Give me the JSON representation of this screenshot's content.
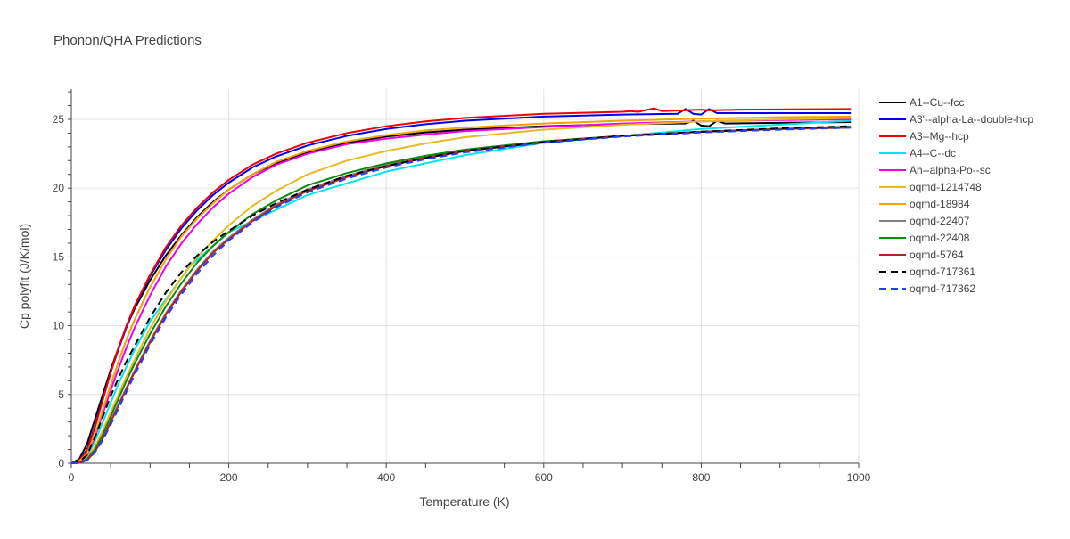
{
  "chart_data": {
    "type": "line",
    "title": "Phonon/QHA Predictions",
    "xlabel": "Temperature (K)",
    "ylabel": "Cp polyfit (J/K/mol)",
    "xlim": [
      0,
      1000
    ],
    "ylim": [
      0,
      27.2
    ],
    "xticks": [
      0,
      200,
      400,
      600,
      800,
      1000
    ],
    "yticks": [
      0,
      5,
      10,
      15,
      20,
      25
    ],
    "grid": true,
    "legend_position": "right",
    "series": [
      {
        "name": "A1--Cu--fcc",
        "color": "#000000",
        "dash": "solid",
        "x": [
          0,
          10,
          20,
          30,
          40,
          50,
          60,
          70,
          80,
          100,
          120,
          140,
          160,
          180,
          200,
          230,
          260,
          300,
          350,
          400,
          450,
          500,
          600,
          700,
          780,
          790,
          800,
          810,
          820,
          830,
          900,
          990
        ],
        "y": [
          0,
          0.3,
          1.4,
          3.2,
          5.0,
          6.8,
          8.4,
          9.9,
          11.2,
          13.3,
          15.1,
          16.6,
          17.9,
          19.0,
          19.9,
          21.0,
          21.8,
          22.6,
          23.3,
          23.75,
          24.05,
          24.25,
          24.5,
          24.65,
          24.7,
          24.9,
          24.55,
          24.5,
          24.9,
          24.7,
          24.75,
          24.8
        ]
      },
      {
        "name": "A3'--alpha-La--double-hcp",
        "color": "#0000ee",
        "dash": "solid",
        "x": [
          0,
          10,
          20,
          30,
          40,
          50,
          60,
          70,
          80,
          100,
          120,
          140,
          160,
          180,
          200,
          230,
          260,
          300,
          350,
          400,
          450,
          500,
          600,
          700,
          770,
          780,
          790,
          800,
          810,
          820,
          900,
          990
        ],
        "y": [
          0,
          0.2,
          1.0,
          2.7,
          4.7,
          6.6,
          8.3,
          9.9,
          11.3,
          13.6,
          15.5,
          17.1,
          18.4,
          19.5,
          20.4,
          21.5,
          22.3,
          23.1,
          23.8,
          24.3,
          24.65,
          24.9,
          25.2,
          25.35,
          25.4,
          25.75,
          25.4,
          25.35,
          25.75,
          25.45,
          25.45,
          25.45
        ]
      },
      {
        "name": "A3--Mg--hcp",
        "color": "#ee0000",
        "dash": "solid",
        "x": [
          0,
          10,
          20,
          30,
          40,
          50,
          60,
          70,
          80,
          100,
          120,
          140,
          160,
          180,
          200,
          230,
          260,
          300,
          350,
          400,
          450,
          500,
          600,
          700,
          710,
          720,
          740,
          750,
          800,
          810,
          850,
          990
        ],
        "y": [
          0,
          0.2,
          0.9,
          2.6,
          4.6,
          6.6,
          8.4,
          10.0,
          11.4,
          13.7,
          15.7,
          17.3,
          18.6,
          19.7,
          20.6,
          21.7,
          22.5,
          23.3,
          24.0,
          24.5,
          24.85,
          25.1,
          25.4,
          25.55,
          25.6,
          25.55,
          25.8,
          25.6,
          25.7,
          25.65,
          25.7,
          25.75
        ]
      },
      {
        "name": "A4--C--dc",
        "color": "#00e5ee",
        "dash": "solid",
        "x": [
          0,
          10,
          20,
          30,
          40,
          60,
          80,
          100,
          150,
          200,
          300,
          400,
          500,
          600,
          800,
          990
        ],
        "y": [
          0,
          0.1,
          0.5,
          1.6,
          3.0,
          5.8,
          8.2,
          10.3,
          14.3,
          16.8,
          19.5,
          21.2,
          22.4,
          23.3,
          24.3,
          24.9
        ]
      },
      {
        "name": "Ah--alpha-Po--sc",
        "color": "#ee00ee",
        "dash": "solid",
        "x": [
          0,
          10,
          20,
          30,
          40,
          50,
          60,
          70,
          80,
          100,
          120,
          140,
          160,
          180,
          200,
          230,
          260,
          300,
          350,
          400,
          450,
          500,
          600,
          700,
          800,
          900,
          990
        ],
        "y": [
          0,
          0.1,
          0.6,
          1.9,
          3.6,
          5.3,
          6.9,
          8.4,
          9.8,
          12.2,
          14.3,
          16.0,
          17.4,
          18.6,
          19.6,
          20.8,
          21.7,
          22.5,
          23.2,
          23.6,
          23.9,
          24.15,
          24.45,
          24.7,
          24.85,
          24.95,
          25.0
        ]
      },
      {
        "name": "oqmd-1214748",
        "color": "#e8b923",
        "dash": "solid",
        "x": [
          0,
          10,
          20,
          30,
          40,
          50,
          60,
          70,
          80,
          100,
          120,
          140,
          160,
          180,
          200,
          230,
          260,
          300,
          350,
          400,
          450,
          500,
          600,
          700,
          800,
          900,
          990
        ],
        "y": [
          0,
          0.05,
          0.35,
          1.2,
          2.4,
          3.7,
          5.0,
          6.3,
          7.5,
          9.8,
          11.8,
          13.5,
          15.0,
          16.2,
          17.3,
          18.7,
          19.8,
          21.0,
          22.0,
          22.7,
          23.25,
          23.7,
          24.25,
          24.6,
          24.85,
          25.0,
          25.1
        ]
      },
      {
        "name": "oqmd-18984",
        "color": "#f5a300",
        "dash": "solid",
        "x": [
          0,
          10,
          20,
          30,
          40,
          50,
          60,
          70,
          80,
          100,
          120,
          140,
          160,
          180,
          200,
          230,
          260,
          300,
          350,
          400,
          450,
          500,
          600,
          700,
          800,
          900,
          990
        ],
        "y": [
          0,
          0.15,
          0.7,
          2.1,
          3.9,
          5.7,
          7.4,
          9.0,
          10.4,
          12.8,
          14.8,
          16.5,
          17.8,
          18.9,
          19.9,
          21.0,
          21.9,
          22.7,
          23.4,
          23.85,
          24.2,
          24.4,
          24.7,
          24.9,
          25.05,
          25.15,
          25.2
        ]
      },
      {
        "name": "oqmd-22407",
        "color": "#808080",
        "dash": "solid",
        "x": [
          0,
          10,
          20,
          30,
          40,
          50,
          60,
          70,
          80,
          100,
          120,
          140,
          160,
          180,
          200,
          230,
          260,
          300,
          350,
          400,
          450,
          500,
          600,
          700,
          800,
          900,
          990
        ],
        "y": [
          0,
          0.03,
          0.25,
          0.9,
          1.9,
          3.1,
          4.3,
          5.5,
          6.7,
          8.9,
          10.9,
          12.6,
          14.1,
          15.4,
          16.4,
          17.7,
          18.8,
          19.9,
          20.9,
          21.7,
          22.3,
          22.8,
          23.4,
          23.8,
          24.1,
          24.3,
          24.5
        ]
      },
      {
        "name": "oqmd-22408",
        "color": "#0a8a0a",
        "dash": "solid",
        "x": [
          0,
          10,
          20,
          30,
          40,
          50,
          60,
          70,
          80,
          100,
          120,
          140,
          160,
          180,
          200,
          230,
          260,
          300,
          350,
          400,
          450,
          500,
          600,
          700,
          800,
          900,
          990
        ],
        "y": [
          0,
          0.04,
          0.3,
          1.0,
          2.1,
          3.4,
          4.7,
          6.0,
          7.2,
          9.4,
          11.4,
          13.1,
          14.6,
          15.8,
          16.8,
          18.1,
          19.1,
          20.2,
          21.1,
          21.8,
          22.35,
          22.8,
          23.4,
          23.8,
          24.1,
          24.3,
          24.45
        ]
      },
      {
        "name": "oqmd-5764",
        "color": "#b22222",
        "dash": "solid",
        "x": [
          0,
          10,
          20,
          30,
          40,
          50,
          60,
          70,
          80,
          100,
          120,
          140,
          160,
          180,
          200,
          230,
          260,
          300,
          350,
          400,
          450,
          500,
          600,
          700,
          800,
          900,
          990
        ],
        "y": [
          0,
          0.03,
          0.22,
          0.85,
          1.8,
          3.0,
          4.2,
          5.4,
          6.6,
          8.8,
          10.8,
          12.5,
          14.0,
          15.3,
          16.3,
          17.6,
          18.7,
          19.8,
          20.8,
          21.6,
          22.2,
          22.7,
          23.35,
          23.8,
          24.1,
          24.3,
          24.4
        ]
      },
      {
        "name": "oqmd-717361",
        "color": "#000000",
        "dash": "dash",
        "x": [
          0,
          10,
          20,
          30,
          40,
          50,
          60,
          70,
          80,
          100,
          120,
          140,
          160,
          180,
          200,
          230,
          260,
          300,
          350,
          400,
          450,
          500,
          600,
          700,
          800,
          900,
          990
        ],
        "y": [
          0,
          0.1,
          0.6,
          1.9,
          3.4,
          4.9,
          6.2,
          7.4,
          8.5,
          10.6,
          12.4,
          13.9,
          15.1,
          16.1,
          16.9,
          18.0,
          18.9,
          19.9,
          20.9,
          21.6,
          22.2,
          22.7,
          23.35,
          23.8,
          24.1,
          24.35,
          24.5
        ]
      },
      {
        "name": "oqmd-717362",
        "color": "#1f3fff",
        "dash": "dash",
        "x": [
          0,
          10,
          20,
          30,
          40,
          50,
          60,
          70,
          80,
          100,
          120,
          140,
          160,
          180,
          200,
          230,
          260,
          300,
          350,
          400,
          450,
          500,
          600,
          700,
          800,
          900,
          990
        ],
        "y": [
          0,
          0.02,
          0.2,
          0.8,
          1.7,
          2.8,
          4.0,
          5.2,
          6.4,
          8.6,
          10.6,
          12.3,
          13.8,
          15.1,
          16.2,
          17.5,
          18.6,
          19.7,
          20.7,
          21.5,
          22.1,
          22.6,
          23.3,
          23.75,
          24.05,
          24.25,
          24.4
        ]
      }
    ]
  }
}
